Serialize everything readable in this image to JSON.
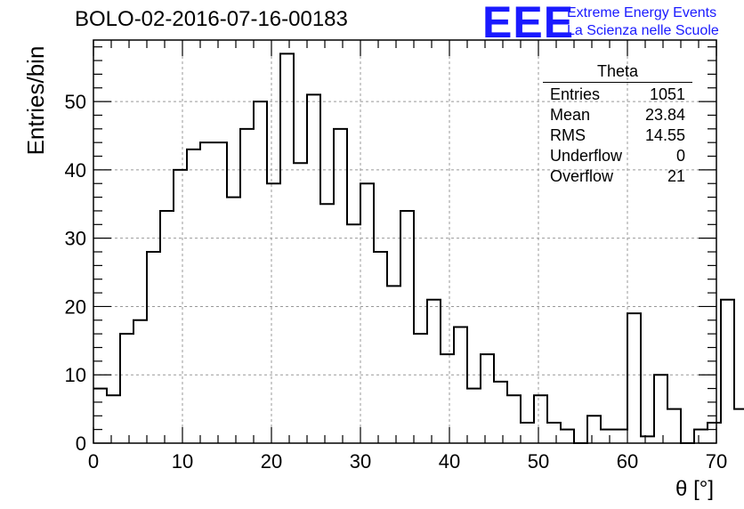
{
  "header": {
    "title": "BOLO-02-2016-07-16-00183"
  },
  "logo": {
    "mark": "EEE",
    "line1": "Extreme Energy Events",
    "line2": "La Scienza nelle Scuole",
    "color": "#1a1aff"
  },
  "stats": {
    "title": "Theta",
    "rows": [
      {
        "label": "Entries",
        "value": "1051"
      },
      {
        "label": "Mean",
        "value": "23.84"
      },
      {
        "label": "RMS",
        "value": "14.55"
      },
      {
        "label": "Underflow",
        "value": "0"
      },
      {
        "label": "Overflow",
        "value": "21"
      }
    ]
  },
  "chart_data": {
    "type": "bar",
    "style": "step-histogram",
    "title": "BOLO-02-2016-07-16-00183",
    "xlabel": "θ [°]",
    "ylabel": "Entries/bin",
    "xlim": [
      0,
      70
    ],
    "ylim": [
      0,
      59
    ],
    "bin_width": 1.5,
    "bin_edges_start": 0,
    "values": [
      8,
      7,
      16,
      18,
      28,
      34,
      40,
      43,
      44,
      44,
      36,
      46,
      50,
      38,
      57,
      41,
      51,
      35,
      46,
      32,
      38,
      28,
      23,
      34,
      16,
      21,
      13,
      17,
      8,
      13,
      9,
      7,
      3,
      7,
      3,
      2,
      0,
      4,
      2,
      2,
      19,
      1,
      10,
      5,
      0,
      2,
      3,
      21,
      5
    ],
    "x_ticks": [
      0,
      10,
      20,
      30,
      40,
      50,
      60,
      70
    ],
    "x_tick_labels": [
      "0",
      "10",
      "20",
      "30",
      "40",
      "50",
      "60",
      "70"
    ],
    "y_ticks": [
      0,
      10,
      20,
      30,
      40,
      50
    ],
    "y_tick_labels": [
      "0",
      "10",
      "20",
      "30",
      "40",
      "50"
    ],
    "grid": true,
    "legend": "top-right"
  }
}
